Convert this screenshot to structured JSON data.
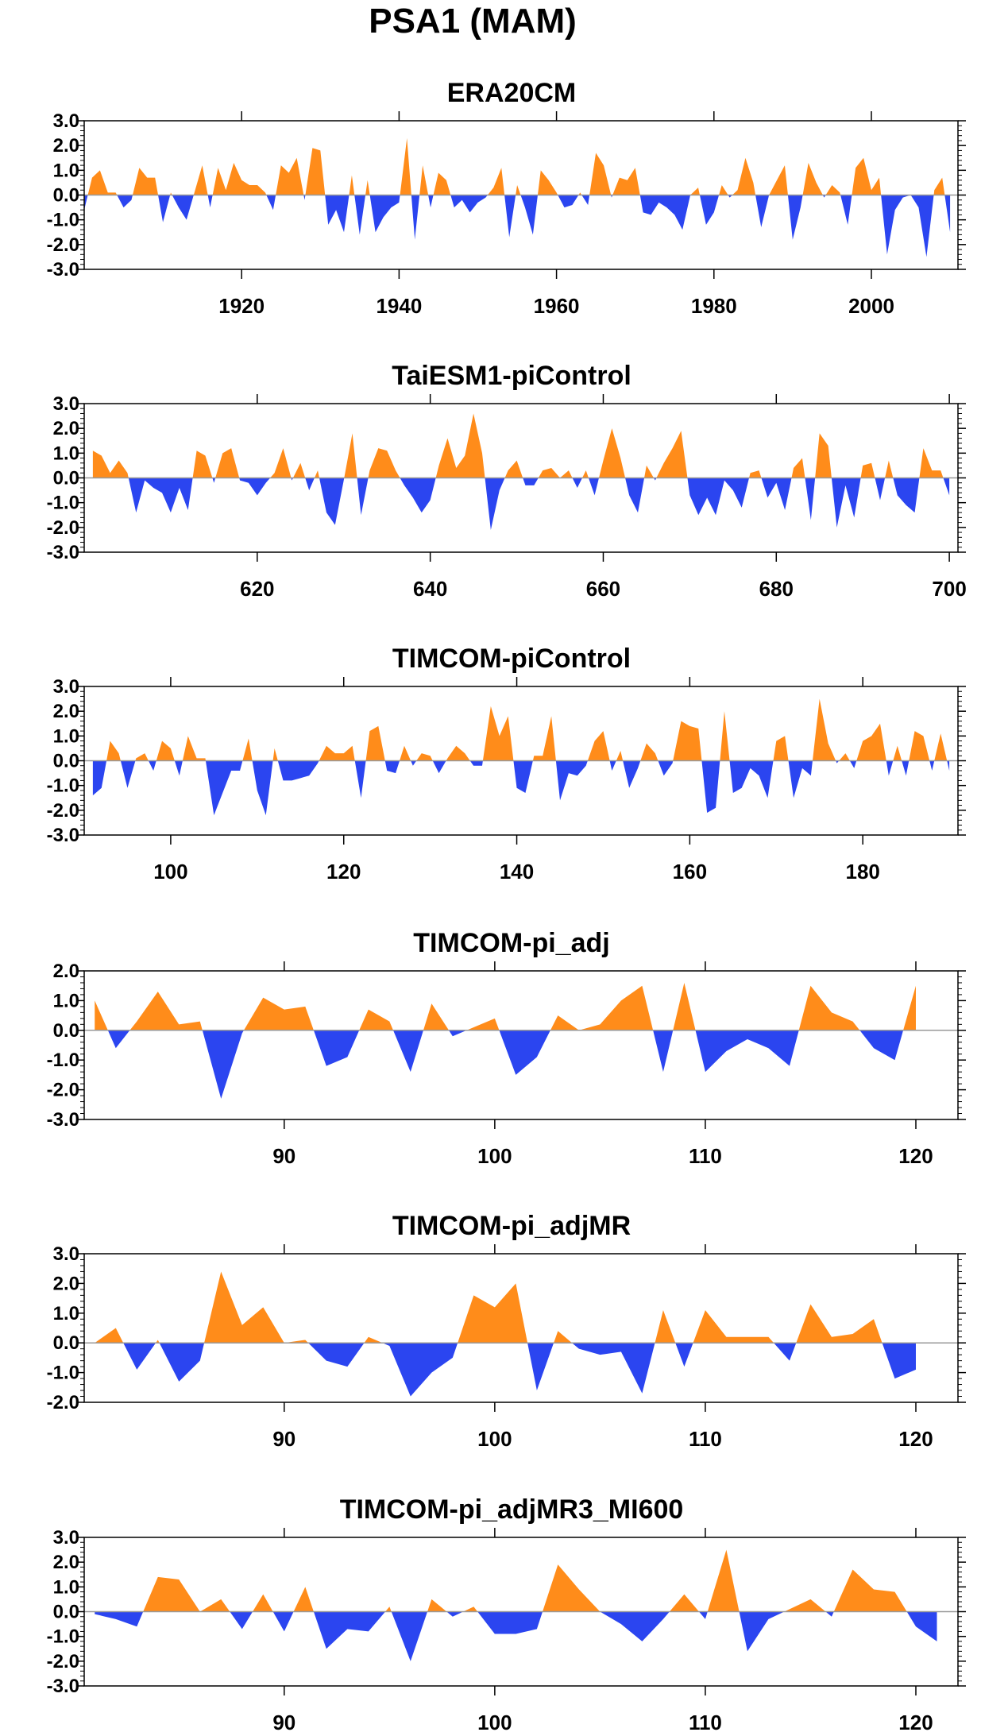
{
  "figure_title": "PSA1 (MAM)",
  "colors": {
    "positive": "#ff8c1a",
    "negative": "#2b45f0",
    "zero_line": "#999999",
    "frame": "#000000"
  },
  "chart_data": [
    {
      "type": "area",
      "title": "ERA20CM",
      "xlabel": "",
      "ylabel": "",
      "xlim": [
        1900,
        2011
      ],
      "ylim": [
        -3.0,
        3.0
      ],
      "yticks": [
        -3.0,
        -2.0,
        -1.0,
        0.0,
        1.0,
        2.0,
        3.0
      ],
      "ytick_labels": [
        "-3.0",
        "-2.0",
        "-1.0",
        "0.0",
        "1.0",
        "2.0",
        "3.0"
      ],
      "xticks": [
        1920,
        1940,
        1960,
        1980,
        2000
      ],
      "xtick_labels": [
        "1920",
        "1940",
        "1960",
        "1980",
        "2000"
      ],
      "grid": false,
      "x_start": 1900,
      "values": [
        -0.6,
        0.7,
        1.0,
        0.1,
        0.1,
        -0.5,
        -0.2,
        1.1,
        0.7,
        0.7,
        -1.1,
        0.1,
        -0.5,
        -1.0,
        0.1,
        1.2,
        -0.5,
        1.1,
        0.2,
        1.3,
        0.6,
        0.4,
        0.4,
        0.1,
        -0.6,
        1.2,
        0.9,
        1.5,
        -0.2,
        1.9,
        1.8,
        -1.2,
        -0.6,
        -1.5,
        0.8,
        -1.6,
        0.6,
        -1.5,
        -0.9,
        -0.5,
        -0.3,
        2.3,
        -1.8,
        1.2,
        -0.5,
        0.9,
        0.6,
        -0.5,
        -0.2,
        -0.7,
        -0.3,
        -0.1,
        0.3,
        1.1,
        -1.7,
        0.4,
        -0.5,
        -1.6,
        1.0,
        0.6,
        0.1,
        -0.5,
        -0.4,
        0.1,
        -0.4,
        1.7,
        1.2,
        -0.1,
        0.7,
        0.6,
        1.1,
        -0.7,
        -0.8,
        -0.3,
        -0.5,
        -0.8,
        -1.4,
        0.0,
        0.3,
        -1.2,
        -0.7,
        0.4,
        -0.1,
        0.2,
        1.5,
        0.5,
        -1.3,
        0.0,
        0.6,
        1.2,
        -1.8,
        -0.5,
        1.3,
        0.5,
        -0.1,
        0.4,
        0.1,
        -1.2,
        1.1,
        1.5,
        0.2,
        0.7,
        -2.4,
        -0.6,
        -0.1,
        0.0,
        -0.5,
        -2.5,
        0.2,
        0.7,
        -1.5
      ]
    },
    {
      "type": "area",
      "title": "TaiESM1-piControl",
      "xlabel": "",
      "ylabel": "",
      "xlim": [
        600,
        701
      ],
      "ylim": [
        -3.0,
        3.0
      ],
      "yticks": [
        -3.0,
        -2.0,
        -1.0,
        0.0,
        1.0,
        2.0,
        3.0
      ],
      "ytick_labels": [
        "-3.0",
        "-2.0",
        "-1.0",
        "0.0",
        "1.0",
        "2.0",
        "3.0"
      ],
      "xticks": [
        620,
        640,
        660,
        680,
        700
      ],
      "xtick_labels": [
        "620",
        "640",
        "660",
        "680",
        "700"
      ],
      "grid": false,
      "x_start": 601,
      "values": [
        1.1,
        0.9,
        0.2,
        0.7,
        0.2,
        -1.4,
        -0.1,
        -0.4,
        -0.6,
        -1.4,
        -0.4,
        -1.3,
        1.1,
        0.9,
        -0.2,
        1.0,
        1.2,
        -0.1,
        -0.2,
        -0.7,
        -0.2,
        0.2,
        1.2,
        -0.1,
        0.6,
        -0.5,
        0.3,
        -1.4,
        -1.9,
        -0.1,
        1.8,
        -1.5,
        0.3,
        1.2,
        1.1,
        0.3,
        -0.3,
        -0.8,
        -1.4,
        -0.9,
        0.5,
        1.6,
        0.4,
        0.9,
        2.6,
        1.0,
        -2.1,
        -0.5,
        0.3,
        0.7,
        -0.3,
        -0.3,
        0.3,
        0.4,
        0.0,
        0.3,
        -0.4,
        0.3,
        -0.7,
        0.7,
        2.0,
        0.8,
        -0.7,
        -1.4,
        0.5,
        -0.1,
        0.6,
        1.2,
        1.9,
        -0.7,
        -1.5,
        -0.8,
        -1.5,
        -0.1,
        -0.5,
        -1.2,
        0.2,
        0.3,
        -0.8,
        -0.2,
        -1.3,
        0.4,
        0.8,
        -1.7,
        1.8,
        1.3,
        -2.0,
        -0.3,
        -1.6,
        0.5,
        0.6,
        -0.9,
        0.7,
        -0.7,
        -1.1,
        -1.4,
        1.2,
        0.3,
        0.3,
        -0.7
      ]
    },
    {
      "type": "area",
      "title": "TIMCOM-piControl",
      "xlabel": "",
      "ylabel": "",
      "xlim": [
        90,
        191
      ],
      "ylim": [
        -3.0,
        3.0
      ],
      "yticks": [
        -3.0,
        -2.0,
        -1.0,
        0.0,
        1.0,
        2.0,
        3.0
      ],
      "ytick_labels": [
        "-3.0",
        "-2.0",
        "-1.0",
        "0.0",
        "1.0",
        "2.0",
        "3.0"
      ],
      "xticks": [
        100,
        120,
        140,
        160,
        180
      ],
      "xtick_labels": [
        "100",
        "120",
        "140",
        "160",
        "180"
      ],
      "grid": false,
      "x_start": 91,
      "values": [
        -1.4,
        -1.1,
        0.8,
        0.3,
        -1.1,
        0.1,
        0.3,
        -0.4,
        0.8,
        0.5,
        -0.6,
        1.0,
        0.1,
        0.1,
        -2.2,
        -1.3,
        -0.4,
        -0.4,
        0.9,
        -1.2,
        -2.2,
        0.5,
        -0.8,
        -0.8,
        -0.7,
        -0.6,
        -0.1,
        0.6,
        0.3,
        0.3,
        0.6,
        -1.5,
        1.2,
        1.4,
        -0.4,
        -0.5,
        0.6,
        -0.2,
        0.3,
        0.2,
        -0.5,
        0.1,
        0.6,
        0.3,
        -0.2,
        -0.2,
        2.2,
        1.0,
        1.8,
        -1.1,
        -1.3,
        0.2,
        0.2,
        1.8,
        -1.6,
        -0.5,
        -0.6,
        -0.2,
        0.8,
        1.2,
        -0.4,
        0.4,
        -1.1,
        -0.3,
        0.7,
        0.3,
        -0.6,
        -0.1,
        1.6,
        1.4,
        1.3,
        -2.1,
        -1.9,
        2.0,
        -1.3,
        -1.1,
        -0.3,
        -0.6,
        -1.5,
        0.8,
        1.0,
        -1.5,
        -0.3,
        -0.6,
        2.5,
        0.7,
        -0.1,
        0.3,
        -0.3,
        0.8,
        1.0,
        1.5,
        -0.6,
        0.6,
        -0.6,
        1.2,
        1.0,
        -0.4,
        1.1,
        -0.4
      ]
    },
    {
      "type": "area",
      "title": "TIMCOM-pi_adj",
      "xlabel": "",
      "ylabel": "",
      "xlim": [
        80.5,
        122
      ],
      "ylim": [
        -3.0,
        2.0
      ],
      "yticks": [
        -3.0,
        -2.0,
        -1.0,
        0.0,
        1.0,
        2.0
      ],
      "ytick_labels": [
        "-3.0",
        "-2.0",
        "-1.0",
        "0.0",
        "1.0",
        "2.0"
      ],
      "xticks": [
        90,
        100,
        110,
        120
      ],
      "xtick_labels": [
        "90",
        "100",
        "110",
        "120"
      ],
      "grid": false,
      "x_start": 81,
      "values": [
        1.0,
        -0.6,
        0.3,
        1.3,
        0.2,
        0.3,
        -2.3,
        -0.1,
        1.1,
        0.7,
        0.8,
        -1.2,
        -0.9,
        0.7,
        0.3,
        -1.4,
        0.9,
        -0.2,
        0.1,
        0.4,
        -1.5,
        -0.9,
        0.5,
        0.0,
        0.2,
        1.0,
        1.5,
        -1.4,
        1.6,
        -1.4,
        -0.7,
        -0.3,
        -0.6,
        -1.2,
        1.5,
        0.6,
        0.3,
        -0.6,
        -1.0,
        1.5
      ]
    },
    {
      "type": "area",
      "title": "TIMCOM-pi_adjMR",
      "xlabel": "",
      "ylabel": "",
      "xlim": [
        80.5,
        122
      ],
      "ylim": [
        -2.0,
        3.0
      ],
      "yticks": [
        -2.0,
        -1.0,
        0.0,
        1.0,
        2.0,
        3.0
      ],
      "ytick_labels": [
        "-2.0",
        "-1.0",
        "0.0",
        "1.0",
        "2.0",
        "3.0"
      ],
      "xticks": [
        90,
        100,
        110,
        120
      ],
      "xtick_labels": [
        "90",
        "100",
        "110",
        "120"
      ],
      "grid": false,
      "x_start": 81,
      "values": [
        0.0,
        0.5,
        -0.9,
        0.1,
        -1.3,
        -0.6,
        2.4,
        0.6,
        1.2,
        0.0,
        0.1,
        -0.6,
        -0.8,
        0.2,
        -0.1,
        -1.8,
        -1.0,
        -0.5,
        1.6,
        1.2,
        2.0,
        -1.6,
        0.4,
        -0.2,
        -0.4,
        -0.3,
        -1.7,
        1.1,
        -0.8,
        1.1,
        0.2,
        0.2,
        0.2,
        -0.6,
        1.3,
        0.2,
        0.3,
        0.8,
        -1.2,
        -0.9
      ]
    },
    {
      "type": "area",
      "title": "TIMCOM-pi_adjMR3_MI600",
      "xlabel": "",
      "ylabel": "",
      "xlim": [
        80.5,
        122
      ],
      "ylim": [
        -3.0,
        3.0
      ],
      "yticks": [
        -3.0,
        -2.0,
        -1.0,
        0.0,
        1.0,
        2.0,
        3.0
      ],
      "ytick_labels": [
        "-3.0",
        "-2.0",
        "-1.0",
        "0.0",
        "1.0",
        "2.0",
        "3.0"
      ],
      "xticks": [
        90,
        100,
        110,
        120
      ],
      "xtick_labels": [
        "90",
        "100",
        "110",
        "120"
      ],
      "grid": false,
      "x_start": 81,
      "values": [
        -0.1,
        -0.3,
        -0.6,
        1.4,
        1.3,
        0.0,
        0.5,
        -0.7,
        0.7,
        -0.8,
        1.0,
        -1.5,
        -0.7,
        -0.8,
        0.2,
        -2.0,
        0.5,
        -0.2,
        0.2,
        -0.9,
        -0.9,
        -0.7,
        1.9,
        0.9,
        0.0,
        -0.5,
        -1.2,
        -0.3,
        0.7,
        -0.3,
        2.5,
        -1.6,
        -0.3,
        0.1,
        0.5,
        -0.2,
        1.7,
        0.9,
        0.8,
        -0.6,
        -1.2
      ]
    }
  ]
}
